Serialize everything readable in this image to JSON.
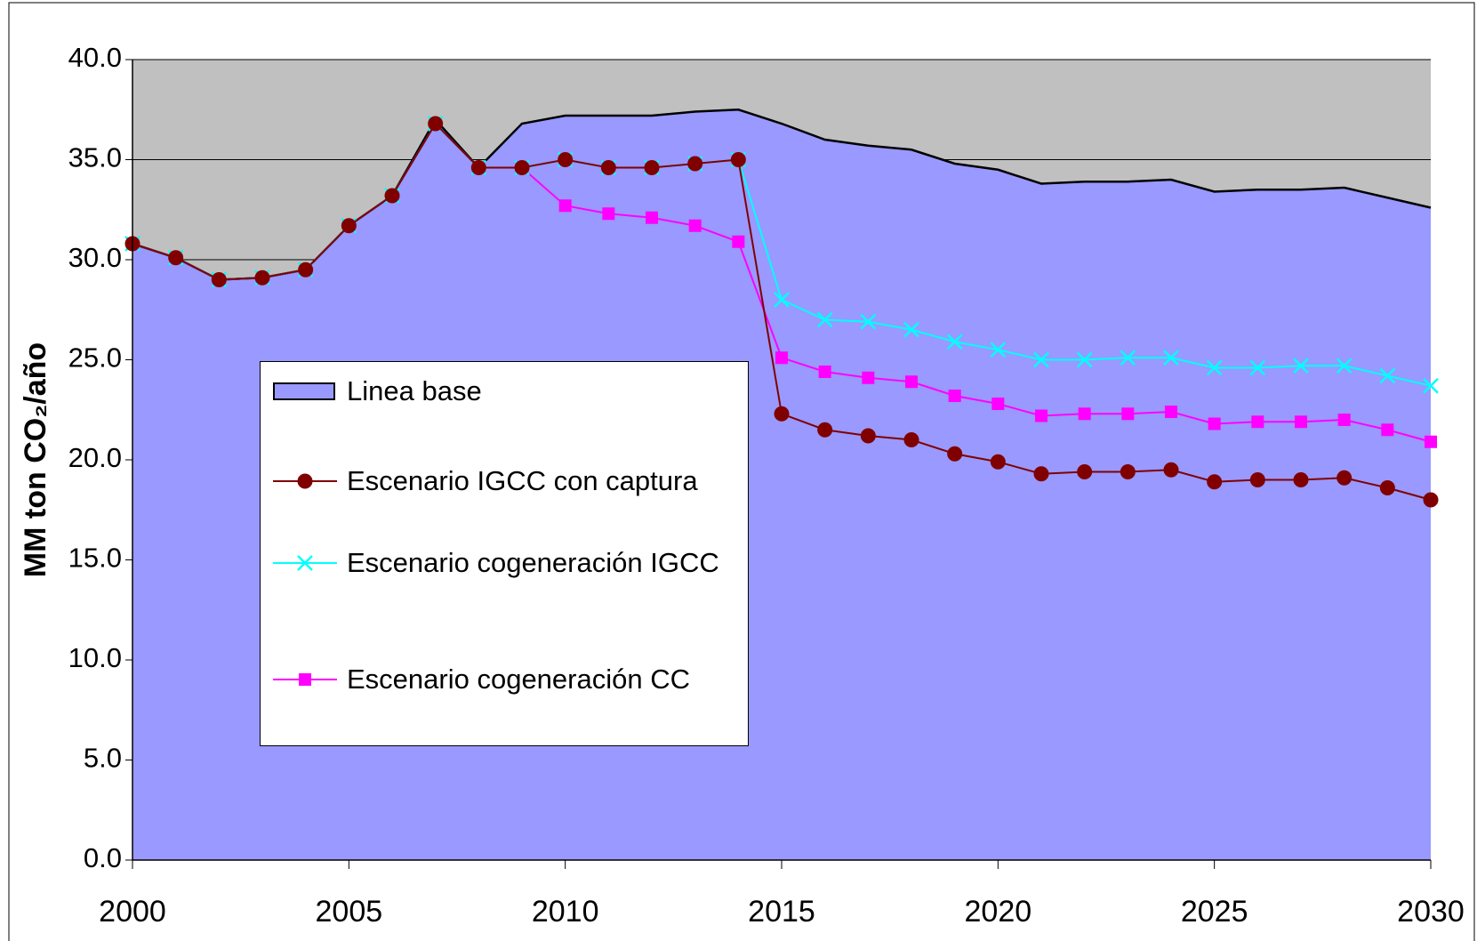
{
  "chart_data": {
    "type": "line",
    "y_label": "MM ton CO₂/año",
    "x": [
      2000,
      2001,
      2002,
      2003,
      2004,
      2005,
      2006,
      2007,
      2008,
      2009,
      2010,
      2011,
      2012,
      2013,
      2014,
      2015,
      2016,
      2017,
      2018,
      2019,
      2020,
      2021,
      2022,
      2023,
      2024,
      2025,
      2026,
      2027,
      2028,
      2029,
      2030
    ],
    "xlim": [
      2000,
      2030
    ],
    "xticks": [
      2000,
      2005,
      2010,
      2015,
      2020,
      2025,
      2030
    ],
    "ylim": [
      0,
      40
    ],
    "yticks": [
      {
        "value": 0,
        "label": "0.0"
      },
      {
        "value": 5,
        "label": "5.0"
      },
      {
        "value": 10,
        "label": "10.0"
      },
      {
        "value": 15,
        "label": "15.0"
      },
      {
        "value": 20,
        "label": "20.0"
      },
      {
        "value": 25,
        "label": "25.0"
      },
      {
        "value": 30,
        "label": "30.0"
      },
      {
        "value": 35,
        "label": "35.0"
      },
      {
        "value": 40,
        "label": "40.0"
      }
    ],
    "grid": true,
    "plot_background": "#c0c0c0",
    "series": [
      {
        "name": "Linea base",
        "style": "area",
        "color": "#9999ff",
        "values": [
          30.8,
          30.1,
          29.0,
          29.1,
          29.5,
          31.7,
          33.2,
          37.0,
          34.6,
          36.8,
          37.2,
          37.2,
          37.2,
          37.4,
          37.5,
          36.8,
          36.0,
          35.7,
          35.5,
          34.8,
          34.5,
          33.8,
          33.9,
          33.9,
          34.0,
          33.4,
          33.5,
          33.5,
          33.6,
          33.1,
          32.6
        ]
      },
      {
        "name": "Escenario IGCC con captura",
        "style": "line",
        "marker": "circle",
        "color": "#800000",
        "values": [
          30.8,
          30.1,
          29.0,
          29.1,
          29.5,
          31.7,
          33.2,
          36.8,
          34.6,
          34.6,
          35.0,
          34.6,
          34.6,
          34.8,
          35.0,
          22.3,
          21.5,
          21.2,
          21.0,
          20.3,
          19.9,
          19.3,
          19.4,
          19.4,
          19.5,
          18.9,
          19.0,
          19.0,
          19.1,
          18.6,
          18.0
        ]
      },
      {
        "name": "Escenario cogeneración IGCC",
        "style": "line",
        "marker": "x",
        "color": "#00ffff",
        "values": [
          30.8,
          30.1,
          29.0,
          29.1,
          29.5,
          31.7,
          33.2,
          36.8,
          34.6,
          34.6,
          35.0,
          34.6,
          34.6,
          34.8,
          35.0,
          28.0,
          27.0,
          26.9,
          26.5,
          25.9,
          25.5,
          25.0,
          25.0,
          25.1,
          25.1,
          24.6,
          24.6,
          24.7,
          24.7,
          24.2,
          23.7
        ]
      },
      {
        "name": "Escenario cogeneración CC",
        "style": "line",
        "marker": "square",
        "color": "#ff00ff",
        "values": [
          30.8,
          30.1,
          29.0,
          29.1,
          29.5,
          31.7,
          33.2,
          36.8,
          34.6,
          34.6,
          32.7,
          32.3,
          32.1,
          31.7,
          30.9,
          25.1,
          24.4,
          24.1,
          23.9,
          23.2,
          22.8,
          22.2,
          22.3,
          22.3,
          22.4,
          21.8,
          21.9,
          21.9,
          22.0,
          21.5,
          20.9
        ]
      }
    ],
    "legend": "inside-left"
  }
}
